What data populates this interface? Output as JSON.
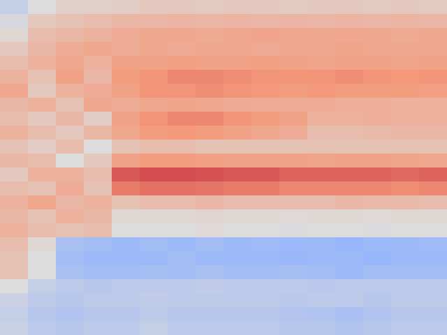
{
  "chart_data": {
    "type": "heatmap",
    "tick_labels": false,
    "color_range": [
      0,
      1
    ],
    "cells": [
      [
        0.42,
        0.5,
        0.55,
        0.55,
        0.56,
        0.58,
        0.58,
        0.57,
        0.58,
        0.58,
        0.57,
        0.58,
        0.58,
        0.57,
        0.58,
        0.57
      ],
      [
        0.48,
        0.58,
        0.6,
        0.62,
        0.64,
        0.64,
        0.65,
        0.64,
        0.65,
        0.64,
        0.65,
        0.64,
        0.65,
        0.64,
        0.65,
        0.64
      ],
      [
        0.52,
        0.62,
        0.64,
        0.66,
        0.68,
        0.7,
        0.7,
        0.69,
        0.7,
        0.71,
        0.7,
        0.7,
        0.7,
        0.7,
        0.69,
        0.7
      ],
      [
        0.58,
        0.64,
        0.68,
        0.7,
        0.68,
        0.7,
        0.69,
        0.7,
        0.7,
        0.69,
        0.7,
        0.7,
        0.71,
        0.7,
        0.7,
        0.7
      ],
      [
        0.62,
        0.66,
        0.7,
        0.66,
        0.72,
        0.72,
        0.73,
        0.72,
        0.72,
        0.73,
        0.72,
        0.71,
        0.72,
        0.72,
        0.71,
        0.72
      ],
      [
        0.66,
        0.6,
        0.72,
        0.64,
        0.74,
        0.76,
        0.78,
        0.78,
        0.77,
        0.76,
        0.76,
        0.76,
        0.77,
        0.76,
        0.75,
        0.76
      ],
      [
        0.7,
        0.58,
        0.66,
        0.68,
        0.72,
        0.76,
        0.76,
        0.77,
        0.76,
        0.75,
        0.74,
        0.75,
        0.74,
        0.74,
        0.74,
        0.73
      ],
      [
        0.64,
        0.66,
        0.6,
        0.7,
        0.68,
        0.7,
        0.71,
        0.7,
        0.69,
        0.68,
        0.68,
        0.68,
        0.67,
        0.67,
        0.66,
        0.66
      ],
      [
        0.62,
        0.58,
        0.64,
        0.56,
        0.72,
        0.76,
        0.78,
        0.78,
        0.76,
        0.74,
        0.72,
        0.66,
        0.66,
        0.67,
        0.66,
        0.66
      ],
      [
        0.66,
        0.62,
        0.58,
        0.64,
        0.7,
        0.74,
        0.75,
        0.74,
        0.72,
        0.7,
        0.68,
        0.62,
        0.62,
        0.63,
        0.64,
        0.64
      ],
      [
        0.6,
        0.56,
        0.62,
        0.5,
        0.6,
        0.62,
        0.62,
        0.6,
        0.6,
        0.6,
        0.6,
        0.6,
        0.6,
        0.6,
        0.6,
        0.6
      ],
      [
        0.64,
        0.62,
        0.5,
        0.58,
        0.72,
        0.74,
        0.74,
        0.73,
        0.72,
        0.72,
        0.72,
        0.71,
        0.72,
        0.72,
        0.71,
        0.7
      ],
      [
        0.58,
        0.66,
        0.66,
        0.62,
        0.86,
        0.88,
        0.88,
        0.87,
        0.86,
        0.86,
        0.84,
        0.84,
        0.84,
        0.84,
        0.83,
        0.84
      ],
      [
        0.62,
        0.6,
        0.68,
        0.6,
        0.8,
        0.82,
        0.82,
        0.81,
        0.8,
        0.8,
        0.78,
        0.78,
        0.78,
        0.78,
        0.77,
        0.78
      ],
      [
        0.66,
        0.7,
        0.64,
        0.66,
        0.6,
        0.62,
        0.62,
        0.64,
        0.62,
        0.62,
        0.62,
        0.62,
        0.64,
        0.63,
        0.63,
        0.62
      ],
      [
        0.64,
        0.6,
        0.66,
        0.64,
        0.52,
        0.52,
        0.52,
        0.53,
        0.52,
        0.52,
        0.51,
        0.52,
        0.52,
        0.51,
        0.52,
        0.52
      ],
      [
        0.66,
        0.62,
        0.6,
        0.62,
        0.5,
        0.5,
        0.5,
        0.51,
        0.5,
        0.5,
        0.49,
        0.5,
        0.5,
        0.49,
        0.5,
        0.5
      ],
      [
        0.62,
        0.52,
        0.34,
        0.32,
        0.3,
        0.32,
        0.3,
        0.32,
        0.3,
        0.31,
        0.3,
        0.3,
        0.28,
        0.3,
        0.3,
        0.31
      ],
      [
        0.6,
        0.5,
        0.32,
        0.3,
        0.3,
        0.3,
        0.32,
        0.3,
        0.3,
        0.3,
        0.29,
        0.3,
        0.3,
        0.28,
        0.3,
        0.3
      ],
      [
        0.6,
        0.5,
        0.34,
        0.32,
        0.32,
        0.33,
        0.32,
        0.34,
        0.32,
        0.32,
        0.33,
        0.32,
        0.3,
        0.32,
        0.32,
        0.32
      ],
      [
        0.5,
        0.42,
        0.4,
        0.38,
        0.4,
        0.4,
        0.4,
        0.41,
        0.4,
        0.4,
        0.4,
        0.39,
        0.4,
        0.4,
        0.4,
        0.4
      ],
      [
        0.44,
        0.4,
        0.38,
        0.4,
        0.4,
        0.41,
        0.4,
        0.4,
        0.4,
        0.4,
        0.39,
        0.4,
        0.4,
        0.38,
        0.4,
        0.4
      ],
      [
        0.42,
        0.38,
        0.36,
        0.38,
        0.38,
        0.4,
        0.38,
        0.38,
        0.38,
        0.38,
        0.37,
        0.36,
        0.34,
        0.36,
        0.38,
        0.38
      ],
      [
        0.44,
        0.4,
        0.38,
        0.4,
        0.4,
        0.42,
        0.4,
        0.4,
        0.4,
        0.4,
        0.38,
        0.38,
        0.36,
        0.38,
        0.4,
        0.4
      ]
    ]
  }
}
